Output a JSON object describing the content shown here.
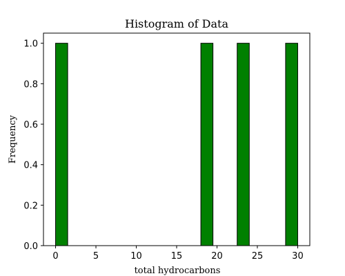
{
  "chart_data": {
    "type": "bar",
    "title": "Histogram of Data",
    "xlabel": "total hydrocarbons",
    "ylabel": "Frequency",
    "xlim": [
      -1.5,
      31.5
    ],
    "ylim": [
      0,
      1.05
    ],
    "x_ticks": [
      0,
      5,
      10,
      15,
      20,
      25,
      30
    ],
    "y_ticks": [
      0.0,
      0.2,
      0.4,
      0.6,
      0.8,
      1.0
    ],
    "bin_width": 1.5,
    "bins": [
      {
        "start": 0.0,
        "end": 1.5,
        "count": 1
      },
      {
        "start": 18.0,
        "end": 19.5,
        "count": 1
      },
      {
        "start": 22.5,
        "end": 24.0,
        "count": 1
      },
      {
        "start": 28.5,
        "end": 30.0,
        "count": 1
      }
    ],
    "bar_color": "#008000",
    "edge_color": "#000000",
    "grid": false
  }
}
